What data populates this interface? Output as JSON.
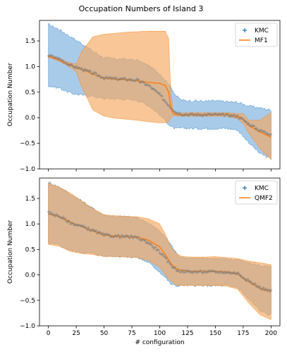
{
  "title": "Occupation Numbers of Island 3",
  "colors": {
    "kmc": "#1f77b4",
    "kmc_band": "#6fa8dc",
    "mf": "#ff7f0e",
    "mf_band": "#f5a860",
    "points": "#7f7f7f"
  },
  "chart_data": [
    {
      "type": "line",
      "xlabel": "",
      "ylabel": "Occupation Number",
      "xlim": [
        -8,
        208
      ],
      "ylim": [
        -1.0,
        1.9
      ],
      "xticks": [
        0,
        25,
        50,
        75,
        100,
        125,
        150,
        175,
        200
      ],
      "xtick_labels": [],
      "yticks": [
        -1.0,
        -0.5,
        0.0,
        0.5,
        1.0,
        1.5
      ],
      "ytick_labels": [
        "−1.0",
        "−0.5",
        "0.0",
        "0.5",
        "1.0",
        "1.5"
      ],
      "legend_position": "top-right",
      "legend": [
        "KMC",
        "MF1"
      ],
      "kmc": {
        "name": "KMC",
        "x": [
          0,
          10,
          20,
          30,
          40,
          50,
          60,
          70,
          80,
          90,
          100,
          105,
          110,
          115,
          120,
          130,
          140,
          150,
          160,
          170,
          180,
          190,
          200
        ],
        "mean": [
          1.22,
          1.15,
          1.02,
          0.95,
          0.87,
          0.78,
          0.76,
          0.75,
          0.73,
          0.63,
          0.45,
          0.32,
          0.2,
          0.1,
          0.07,
          0.06,
          0.06,
          0.06,
          0.05,
          0.03,
          -0.12,
          -0.25,
          -0.32
        ],
        "upper": [
          1.82,
          1.72,
          1.58,
          1.45,
          1.3,
          1.17,
          1.15,
          1.14,
          1.12,
          1.02,
          0.86,
          0.74,
          0.6,
          0.42,
          0.34,
          0.33,
          0.32,
          0.33,
          0.31,
          0.3,
          0.23,
          0.19,
          0.15
        ],
        "lower": [
          0.62,
          0.58,
          0.48,
          0.44,
          0.42,
          0.37,
          0.37,
          0.36,
          0.34,
          0.24,
          0.06,
          -0.05,
          -0.18,
          -0.22,
          -0.2,
          -0.21,
          -0.21,
          -0.21,
          -0.21,
          -0.24,
          -0.48,
          -0.7,
          -0.8
        ]
      },
      "model": {
        "name": "MF1",
        "x": [
          0,
          10,
          20,
          25,
          30,
          40,
          50,
          60,
          70,
          80,
          90,
          100,
          105,
          108,
          110,
          112,
          115,
          120,
          130,
          140,
          150,
          160,
          170,
          175,
          180,
          190,
          200
        ],
        "mean": [
          1.2,
          1.12,
          1.02,
          0.98,
          0.95,
          0.85,
          0.77,
          0.75,
          0.74,
          0.72,
          0.69,
          0.67,
          0.63,
          0.5,
          0.2,
          0.08,
          0.06,
          0.06,
          0.06,
          0.06,
          0.06,
          0.06,
          0.03,
          -0.02,
          -0.15,
          -0.28,
          -0.38
        ],
        "upper": [
          1.22,
          1.15,
          1.07,
          1.05,
          1.3,
          1.58,
          1.63,
          1.65,
          1.67,
          1.68,
          1.69,
          1.69,
          1.69,
          1.55,
          0.5,
          0.12,
          0.1,
          0.1,
          0.1,
          0.1,
          0.1,
          0.1,
          0.08,
          0.08,
          -0.05,
          -0.05,
          0.1
        ],
        "lower": [
          1.18,
          1.1,
          0.98,
          0.9,
          0.6,
          0.15,
          0.03,
          -0.01,
          -0.03,
          -0.05,
          -0.08,
          -0.1,
          -0.1,
          -0.08,
          0.0,
          0.04,
          0.03,
          0.03,
          0.03,
          0.03,
          0.03,
          0.03,
          -0.02,
          -0.12,
          -0.3,
          -0.6,
          -0.82
        ]
      }
    },
    {
      "type": "line",
      "xlabel": "# configuration",
      "ylabel": "Occupation Number",
      "xlim": [
        -8,
        208
      ],
      "ylim": [
        -1.0,
        1.9
      ],
      "xticks": [
        0,
        25,
        50,
        75,
        100,
        125,
        150,
        175,
        200
      ],
      "xtick_labels": [
        "0",
        "25",
        "50",
        "75",
        "100",
        "125",
        "150",
        "175",
        "200"
      ],
      "yticks": [
        -1.0,
        -0.5,
        0.0,
        0.5,
        1.0,
        1.5
      ],
      "ytick_labels": [
        "−1.0",
        "−0.5",
        "0.0",
        "0.5",
        "1.0",
        "1.5"
      ],
      "legend_position": "top-right",
      "legend": [
        "KMC",
        "QMF2"
      ],
      "kmc": {
        "name": "KMC",
        "x": [
          0,
          10,
          20,
          30,
          40,
          50,
          60,
          70,
          80,
          90,
          100,
          105,
          110,
          115,
          120,
          130,
          140,
          150,
          160,
          170,
          180,
          190,
          200
        ],
        "mean": [
          1.22,
          1.15,
          1.02,
          0.95,
          0.87,
          0.78,
          0.76,
          0.75,
          0.73,
          0.63,
          0.45,
          0.32,
          0.2,
          0.1,
          0.07,
          0.06,
          0.06,
          0.06,
          0.05,
          0.03,
          -0.12,
          -0.25,
          -0.32
        ],
        "upper": [
          1.82,
          1.72,
          1.58,
          1.45,
          1.3,
          1.17,
          1.15,
          1.14,
          1.12,
          1.02,
          0.86,
          0.74,
          0.6,
          0.42,
          0.34,
          0.33,
          0.32,
          0.33,
          0.31,
          0.3,
          0.23,
          0.19,
          0.15
        ],
        "lower": [
          0.62,
          0.58,
          0.48,
          0.44,
          0.42,
          0.37,
          0.37,
          0.36,
          0.34,
          0.24,
          0.06,
          -0.05,
          -0.18,
          -0.22,
          -0.2,
          -0.21,
          -0.21,
          -0.21,
          -0.21,
          -0.24,
          -0.48,
          -0.7,
          -0.8
        ]
      },
      "model": {
        "name": "QMF2",
        "x": [
          0,
          10,
          20,
          30,
          40,
          50,
          60,
          70,
          80,
          90,
          100,
          105,
          110,
          115,
          120,
          130,
          140,
          150,
          160,
          170,
          180,
          190,
          200
        ],
        "mean": [
          1.2,
          1.14,
          1.03,
          0.95,
          0.86,
          0.78,
          0.76,
          0.75,
          0.74,
          0.68,
          0.55,
          0.4,
          0.22,
          0.12,
          0.08,
          0.07,
          0.07,
          0.07,
          0.06,
          0.02,
          -0.14,
          -0.26,
          -0.33
        ],
        "upper": [
          1.8,
          1.72,
          1.6,
          1.45,
          1.3,
          1.18,
          1.16,
          1.15,
          1.14,
          1.1,
          1.0,
          0.8,
          0.55,
          0.42,
          0.36,
          0.35,
          0.35,
          0.36,
          0.34,
          0.32,
          0.27,
          0.24,
          0.2
        ],
        "lower": [
          0.6,
          0.56,
          0.46,
          0.42,
          0.4,
          0.36,
          0.36,
          0.35,
          0.34,
          0.28,
          0.15,
          0.0,
          -0.12,
          -0.2,
          -0.21,
          -0.21,
          -0.21,
          -0.21,
          -0.22,
          -0.28,
          -0.55,
          -0.78,
          -0.88
        ]
      }
    }
  ]
}
